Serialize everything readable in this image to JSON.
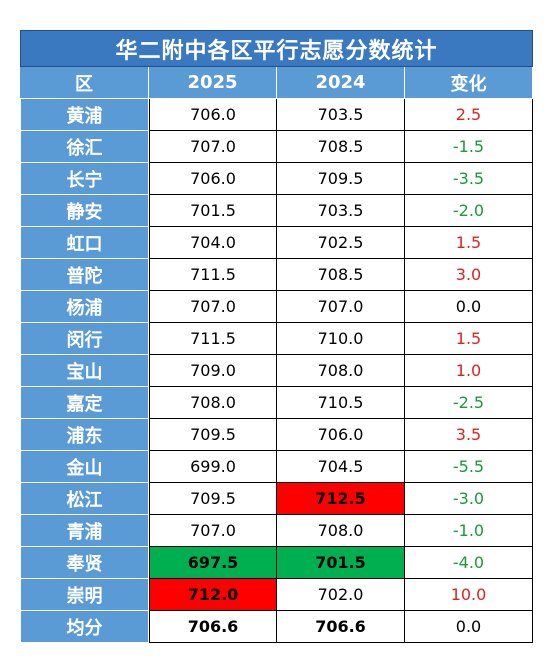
{
  "title": "华二附中各区平行志愿分数统计",
  "headers": [
    "区",
    "2025",
    "2024",
    "变化"
  ],
  "rows": [
    {
      "district": "黄浦",
      "y2025": "706.0",
      "y2024": "703.5",
      "change": "2.5",
      "dir": "pos"
    },
    {
      "district": "徐汇",
      "y2025": "707.0",
      "y2024": "708.5",
      "change": "-1.5",
      "dir": "neg"
    },
    {
      "district": "长宁",
      "y2025": "706.0",
      "y2024": "709.5",
      "change": "-3.5",
      "dir": "neg"
    },
    {
      "district": "静安",
      "y2025": "701.5",
      "y2024": "703.5",
      "change": "-2.0",
      "dir": "neg"
    },
    {
      "district": "虹口",
      "y2025": "704.0",
      "y2024": "702.5",
      "change": "1.5",
      "dir": "pos"
    },
    {
      "district": "普陀",
      "y2025": "711.5",
      "y2024": "708.5",
      "change": "3.0",
      "dir": "pos"
    },
    {
      "district": "杨浦",
      "y2025": "707.0",
      "y2024": "707.0",
      "change": "0.0",
      "dir": "zero"
    },
    {
      "district": "闵行",
      "y2025": "711.5",
      "y2024": "710.0",
      "change": "1.5",
      "dir": "pos"
    },
    {
      "district": "宝山",
      "y2025": "709.0",
      "y2024": "708.0",
      "change": "1.0",
      "dir": "pos"
    },
    {
      "district": "嘉定",
      "y2025": "708.0",
      "y2024": "710.5",
      "change": "-2.5",
      "dir": "neg"
    },
    {
      "district": "浦东",
      "y2025": "709.5",
      "y2024": "706.0",
      "change": "3.5",
      "dir": "pos"
    },
    {
      "district": "金山",
      "y2025": "699.0",
      "y2024": "704.5",
      "change": "-5.5",
      "dir": "neg"
    },
    {
      "district": "松江",
      "y2025": "709.5",
      "y2024": "712.5",
      "change": "-3.0",
      "dir": "neg",
      "hl2024": "#ff0000"
    },
    {
      "district": "青浦",
      "y2025": "707.0",
      "y2024": "708.0",
      "change": "-1.0",
      "dir": "neg"
    },
    {
      "district": "奉贤",
      "y2025": "697.5",
      "y2024": "701.5",
      "change": "-4.0",
      "dir": "neg",
      "hl2025": "#00b050",
      "hl2024": "#00b050"
    },
    {
      "district": "崇明",
      "y2025": "712.0",
      "y2024": "702.0",
      "change": "10.0",
      "dir": "pos",
      "hl2025": "#ff0000"
    }
  ],
  "average": {
    "district": "均分",
    "y2025": "706.6",
    "y2024": "706.6",
    "change": "0.0",
    "dir": "zero"
  },
  "colors": {
    "title_bg": "#3a78c0",
    "header_bg": "#5b9bd5",
    "increase": "#e02020",
    "decrease": "#1a9a3a",
    "max_highlight": "#ff0000",
    "min_highlight": "#00b050"
  }
}
